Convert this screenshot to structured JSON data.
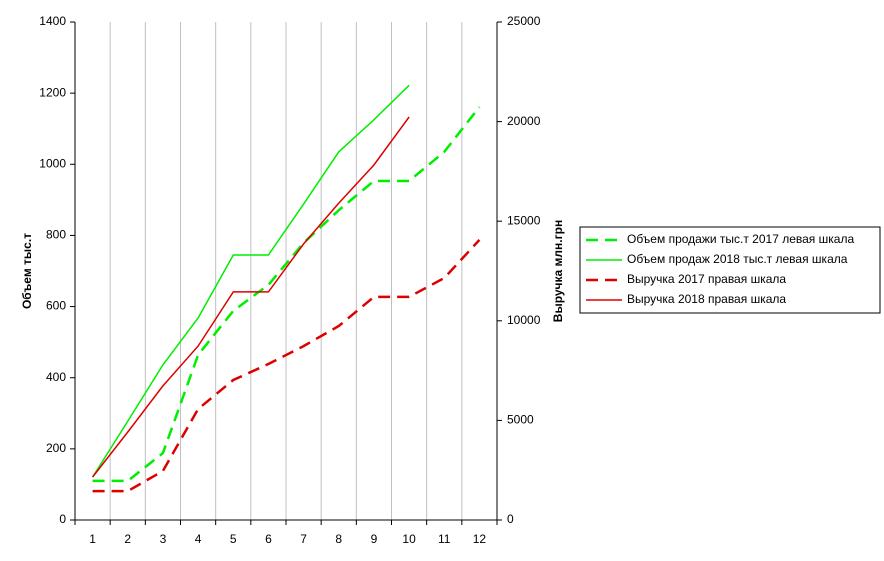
{
  "chart_data": {
    "type": "line",
    "categories": [
      "1",
      "2",
      "3",
      "4",
      "5",
      "6",
      "7",
      "8",
      "9",
      "10",
      "11",
      "12"
    ],
    "y_label": "Объем тыс.т",
    "y2_label": "Выручка млн.грн",
    "ylim": [
      0,
      1400
    ],
    "yticks": [
      0,
      200,
      400,
      600,
      800,
      1000,
      1200,
      1400
    ],
    "y2lim": [
      0,
      25000
    ],
    "y2ticks": [
      0,
      5000,
      10000,
      15000,
      20000,
      25000
    ],
    "grid": "x",
    "series": [
      {
        "name": "Объем продажи тыс.т 2017 левая шкала",
        "color": "#00ee00",
        "dashed": true,
        "values": [
          110,
          110,
          188,
          464,
          588,
          661,
          779,
          871,
          953,
          953,
          1035,
          1161
        ]
      },
      {
        "name": "Объем продаж 2018 тыс.т левая шкала",
        "color": "#00ee00",
        "dashed": false,
        "values": [
          121,
          278,
          436,
          568,
          745,
          745,
          888,
          1035,
          1125,
          1222,
          null,
          null
        ]
      },
      {
        "name": "Выручка 2017 правая шкала",
        "color": "#dd0000",
        "dashed": true,
        "axis": "y2",
        "values": [
          1450,
          1450,
          2460,
          5570,
          7030,
          7830,
          8730,
          9740,
          11200,
          11200,
          12150,
          14060
        ]
      },
      {
        "name": "Выручка 2018 правая шкала",
        "color": "#dd0000",
        "dashed": false,
        "axis": "y2",
        "values": [
          2160,
          4420,
          6730,
          8730,
          11450,
          11450,
          13860,
          15910,
          17820,
          20230,
          null,
          null
        ]
      }
    ]
  }
}
